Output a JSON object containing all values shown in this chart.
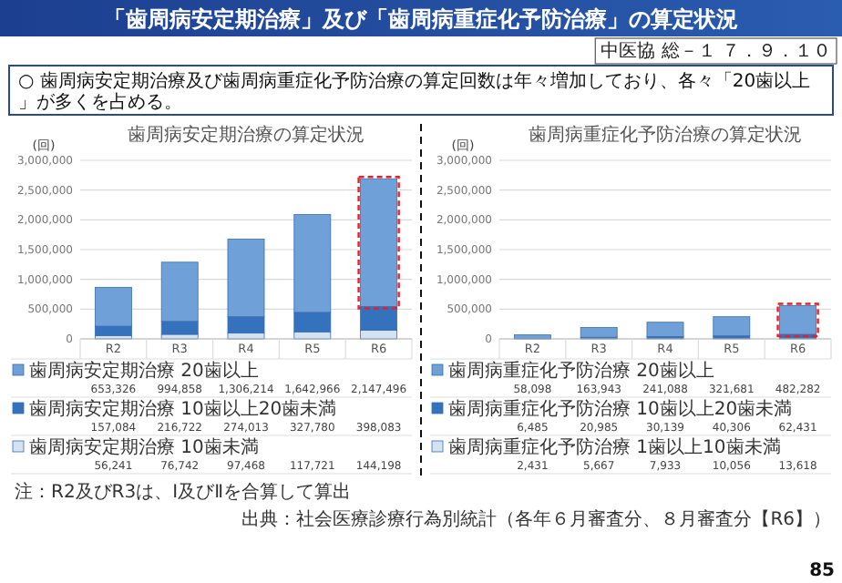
{
  "chart_data": [
    {
      "type": "other",
      "title": "「歯周病安定期治療」及び「歯周病重症化予防治療」の算定状況",
      "annotations": [
        "中医協 総－１ ７．９．１０",
        "○ 歯周病安定期治療及び歯周病重症化予防治療の算定回数は年々増加しており、各々「20歯以上」が多くを占める。",
        "85"
      ]
    },
    {
      "type": "bar",
      "title": "歯周病安定期治療の算定状況",
      "ylabel": "(回)",
      "stacked": true,
      "categories": [
        "R2",
        "R3",
        "R4",
        "R5",
        "R6"
      ],
      "series": [
        {
          "name": "歯周病安定期治療 10歯未満",
          "color": "#d3e3f4",
          "values": [
            56241,
            76742,
            97468,
            117721,
            144198
          ],
          "value_labels": [
            "56,241",
            "76,742",
            "97,468",
            "117,721",
            "144,198"
          ]
        },
        {
          "name": "歯周病安定期治療 10歯以上20歯未満",
          "color": "#3572bd",
          "values": [
            157084,
            216722,
            274013,
            327780,
            398083
          ],
          "value_labels": [
            "157,084",
            "216,722",
            "274,013",
            "327,780",
            "398,083"
          ]
        },
        {
          "name": "歯周病安定期治療 20歯以上",
          "color": "#6fa0d8",
          "values": [
            653326,
            994858,
            1306214,
            1642966,
            2147496
          ],
          "value_labels": [
            "653,326",
            "994,858",
            "1,306,214",
            "1,642,966",
            "2,147,496"
          ]
        }
      ],
      "ylim": [
        0,
        3000000
      ],
      "yticks": [
        {
          "value": 0,
          "label": "0"
        },
        {
          "value": 500000,
          "label": "500,000"
        },
        {
          "value": 1000000,
          "label": "1,000,000"
        },
        {
          "value": 1500000,
          "label": "1,500,000"
        },
        {
          "value": 2000000,
          "label": "2,000,000"
        },
        {
          "value": 2500000,
          "label": "2,500,000"
        },
        {
          "value": 3000000,
          "label": "3,000,000"
        }
      ],
      "grid": "y",
      "legend": "bottom",
      "annotations": [
        "注：R2及びR3は、Ⅰ及びⅡを合算して算出"
      ]
    },
    {
      "type": "bar",
      "title": "歯周病重症化予防治療の算定状況",
      "ylabel": "(回)",
      "stacked": true,
      "categories": [
        "R2",
        "R3",
        "R4",
        "R5",
        "R6"
      ],
      "series": [
        {
          "name": "歯周病重症化予防治療 1歯以上10歯未満",
          "color": "#d3e3f4",
          "values": [
            2431,
            5667,
            7933,
            10056,
            13618
          ],
          "value_labels": [
            "2,431",
            "5,667",
            "7,933",
            "10,056",
            "13,618"
          ]
        },
        {
          "name": "歯周病重症化予防治療 10歯以上20歯未満",
          "color": "#3572bd",
          "values": [
            6485,
            20985,
            30139,
            40306,
            62431
          ],
          "value_labels": [
            "6,485",
            "20,985",
            "30,139",
            "40,306",
            "62,431"
          ]
        },
        {
          "name": "歯周病重症化予防治療 20歯以上",
          "color": "#6fa0d8",
          "values": [
            58098,
            163943,
            241088,
            321681,
            482282
          ],
          "value_labels": [
            "58,098",
            "163,943",
            "241,088",
            "321,681",
            "482,282"
          ]
        }
      ],
      "ylim": [
        0,
        3000000
      ],
      "yticks": [
        {
          "value": 0,
          "label": "0"
        },
        {
          "value": 500000,
          "label": "500,000"
        },
        {
          "value": 1000000,
          "label": "1,000,000"
        },
        {
          "value": 1500000,
          "label": "1,500,000"
        },
        {
          "value": 2000000,
          "label": "2,000,000"
        },
        {
          "value": 2500000,
          "label": "2,500,000"
        },
        {
          "value": 3000000,
          "label": "3,000,000"
        }
      ],
      "grid": "y",
      "legend": "bottom",
      "annotations": [
        "出典：社会医療診療行為別統計（各年６月審査分、８月審査分【R6】）"
      ]
    }
  ]
}
